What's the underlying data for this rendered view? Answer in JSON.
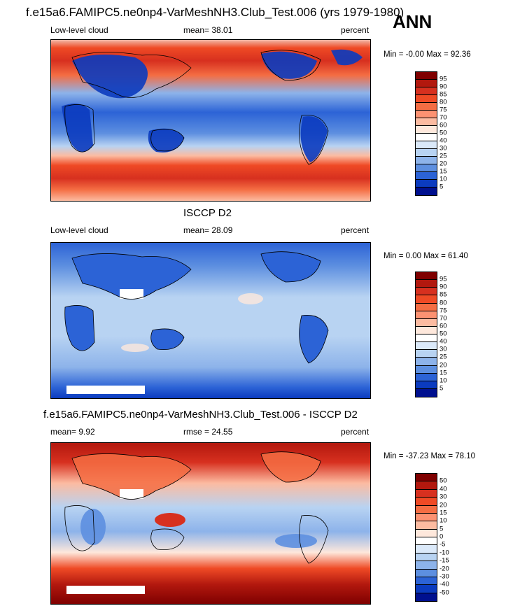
{
  "header": {
    "main_title": "f.e15a6.FAMIPC5.ne0np4-VarMeshNH3.Club_Test.006 (yrs 1979-1980)",
    "season": "ANN"
  },
  "panels": [
    {
      "id": "model",
      "title": "",
      "left_label": "Low-level cloud",
      "center_label": "mean=  38.01",
      "right_label": "percent",
      "minmax": "Min =  -0.00 Max =  92.36",
      "colorbar_labels": [
        "95",
        "90",
        "85",
        "80",
        "75",
        "70",
        "60",
        "50",
        "40",
        "30",
        "25",
        "20",
        "15",
        "10",
        "5"
      ],
      "colors": [
        "#7f0000",
        "#b2180e",
        "#d7301f",
        "#ef4a25",
        "#f46d43",
        "#fc9272",
        "#fcbba1",
        "#fee8dc",
        "#ffffff",
        "#dbe9f9",
        "#b8d3f2",
        "#8db3ea",
        "#5d8fe0",
        "#2c63d6",
        "#0b3bbf",
        "#00108f"
      ]
    },
    {
      "id": "obs",
      "title": "ISCCP D2",
      "left_label": "Low-level cloud",
      "center_label": "mean=  28.09",
      "right_label": "percent",
      "minmax": "Min =   0.00 Max =  61.40",
      "colorbar_labels": [
        "95",
        "90",
        "85",
        "80",
        "75",
        "70",
        "60",
        "50",
        "40",
        "30",
        "25",
        "20",
        "15",
        "10",
        "5"
      ],
      "colors": [
        "#7f0000",
        "#b2180e",
        "#d7301f",
        "#ef4a25",
        "#f46d43",
        "#fc9272",
        "#fcbba1",
        "#fee8dc",
        "#ffffff",
        "#dbe9f9",
        "#b8d3f2",
        "#8db3ea",
        "#5d8fe0",
        "#2c63d6",
        "#0b3bbf",
        "#00108f"
      ]
    },
    {
      "id": "diff",
      "title": "f.e15a6.FAMIPC5.ne0np4-VarMeshNH3.Club_Test.006 - ISCCP D2",
      "left_label": "mean=   9.92",
      "center_label": "rmse =  24.55",
      "right_label": "percent",
      "minmax": "Min = -37.23 Max =  78.10",
      "colorbar_labels": [
        "50",
        "40",
        "30",
        "20",
        "15",
        "10",
        "5",
        "0",
        "-5",
        "-10",
        "-15",
        "-20",
        "-30",
        "-40",
        "-50"
      ],
      "colors": [
        "#7f0000",
        "#b2180e",
        "#d7301f",
        "#ef4a25",
        "#f46d43",
        "#fc9272",
        "#fcbba1",
        "#fee8dc",
        "#ffffff",
        "#dbe9f9",
        "#b8d3f2",
        "#8db3ea",
        "#5d8fe0",
        "#2c63d6",
        "#0b3bbf",
        "#00108f"
      ]
    }
  ]
}
